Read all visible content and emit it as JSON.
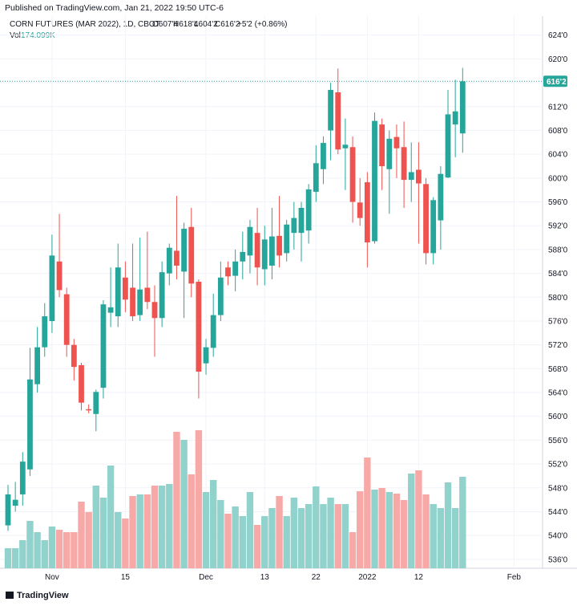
{
  "header": {
    "published": "Published on TradingView.com, Jan 21, 2022 19:50 UTC-6",
    "footer": "TradingView"
  },
  "chart_data": {
    "type": "candlestick",
    "title": "CORN FUTURES (MAR 2022), 1D, CBOT",
    "ohlc_labels": [
      "O607'4",
      "H618'4",
      "L604'2",
      "C616'2"
    ],
    "change_label": "+5'2 (+0.86%)",
    "volume_label": "Vol",
    "up_color": "#26a69a",
    "down_color": "#ef5350",
    "volume_up_color": "#92d2cc",
    "volume_down_color": "#f7a9a7",
    "grid": true,
    "ylim": [
      534.5,
      627.2
    ],
    "yticks": [
      {
        "value": 536,
        "label": "536'0"
      },
      {
        "value": 540,
        "label": "540'0"
      },
      {
        "value": 544,
        "label": "544'0"
      },
      {
        "value": 548,
        "label": "548'0"
      },
      {
        "value": 552,
        "label": "552'0"
      },
      {
        "value": 556,
        "label": "556'0"
      },
      {
        "value": 560,
        "label": "560'0"
      },
      {
        "value": 564,
        "label": "564'0"
      },
      {
        "value": 568,
        "label": "568'0"
      },
      {
        "value": 572,
        "label": "572'0"
      },
      {
        "value": 576,
        "label": "576'0"
      },
      {
        "value": 580,
        "label": "580'0"
      },
      {
        "value": 584,
        "label": "584'0"
      },
      {
        "value": 588,
        "label": "588'0"
      },
      {
        "value": 592,
        "label": "592'0"
      },
      {
        "value": 596,
        "label": "596'0"
      },
      {
        "value": 600,
        "label": "600'0"
      },
      {
        "value": 604,
        "label": "604'0"
      },
      {
        "value": 608,
        "label": "608'0"
      },
      {
        "value": 612,
        "label": "612'0"
      },
      {
        "value": 616,
        "label": "616'0"
      },
      {
        "value": 620,
        "label": "620'0"
      },
      {
        "value": 624,
        "label": "624'0"
      }
    ],
    "xticks": [
      {
        "index": 6,
        "label": "Nov"
      },
      {
        "index": 16,
        "label": "15"
      },
      {
        "index": 27,
        "label": "Dec"
      },
      {
        "index": 35,
        "label": "13"
      },
      {
        "index": 42,
        "label": "22"
      },
      {
        "index": 49,
        "label": "2022"
      },
      {
        "index": 56,
        "label": "12"
      },
      {
        "index": 69,
        "label": "Feb"
      }
    ],
    "candles": [
      {
        "open": 541.7,
        "high": 548.5,
        "low": 540.8,
        "close": 546.9
      },
      {
        "open": 545,
        "high": 549,
        "low": 544,
        "close": 546
      },
      {
        "open": 546.9,
        "high": 554,
        "low": 545,
        "close": 552.4
      },
      {
        "open": 551.1,
        "high": 571.5,
        "low": 550,
        "close": 566.2
      },
      {
        "open": 565.4,
        "high": 575,
        "low": 564,
        "close": 571.6
      },
      {
        "open": 571.6,
        "high": 579,
        "low": 570,
        "close": 576.8
      },
      {
        "open": 576,
        "high": 590.5,
        "low": 574,
        "close": 587
      },
      {
        "open": 586,
        "high": 594,
        "low": 580,
        "close": 581.2
      },
      {
        "open": 580.5,
        "high": 581.6,
        "low": 570,
        "close": 572
      },
      {
        "open": 572,
        "high": 573,
        "low": 566,
        "close": 568.3
      },
      {
        "open": 568.6,
        "high": 569,
        "low": 561,
        "close": 562.3
      },
      {
        "open": 561.2,
        "high": 562,
        "low": 560.5,
        "close": 561
      },
      {
        "open": 560.4,
        "high": 564.5,
        "low": 557.5,
        "close": 564.1
      },
      {
        "open": 564.8,
        "high": 579.5,
        "low": 563,
        "close": 578.8
      },
      {
        "open": 577.4,
        "high": 585,
        "low": 575,
        "close": 578.3
      },
      {
        "open": 576.8,
        "high": 589,
        "low": 575,
        "close": 585
      },
      {
        "open": 583.3,
        "high": 586,
        "low": 577.5,
        "close": 579.6
      },
      {
        "open": 581.6,
        "high": 589,
        "low": 576,
        "close": 576.8
      },
      {
        "open": 577,
        "high": 590,
        "low": 576,
        "close": 581.3
      },
      {
        "open": 581.6,
        "high": 591,
        "low": 578,
        "close": 579.2
      },
      {
        "open": 579.2,
        "high": 582,
        "low": 570,
        "close": 576.5
      },
      {
        "open": 576.5,
        "high": 586,
        "low": 575,
        "close": 584.2
      },
      {
        "open": 584,
        "high": 589,
        "low": 582,
        "close": 588.3
      },
      {
        "open": 587.8,
        "high": 597,
        "low": 583,
        "close": 585.3
      },
      {
        "open": 584.3,
        "high": 592.5,
        "low": 576.5,
        "close": 591.5
      },
      {
        "open": 591.8,
        "high": 595,
        "low": 580,
        "close": 582.3
      },
      {
        "open": 582.6,
        "high": 583,
        "low": 563,
        "close": 567.5
      },
      {
        "open": 568.9,
        "high": 573,
        "low": 567,
        "close": 571.6
      },
      {
        "open": 571.5,
        "high": 580.6,
        "low": 570,
        "close": 577
      },
      {
        "open": 577,
        "high": 586,
        "low": 576,
        "close": 583.3
      },
      {
        "open": 585,
        "high": 586,
        "low": 582,
        "close": 583.5
      },
      {
        "open": 583.6,
        "high": 588,
        "low": 581,
        "close": 586
      },
      {
        "open": 586,
        "high": 591,
        "low": 583,
        "close": 587.6
      },
      {
        "open": 587,
        "high": 593,
        "low": 584,
        "close": 591.8
      },
      {
        "open": 590.8,
        "high": 595,
        "low": 582,
        "close": 585
      },
      {
        "open": 584.7,
        "high": 592,
        "low": 582,
        "close": 589.7
      },
      {
        "open": 585.3,
        "high": 595,
        "low": 583,
        "close": 590.2
      },
      {
        "open": 590.3,
        "high": 597,
        "low": 585,
        "close": 587
      },
      {
        "open": 587.4,
        "high": 593,
        "low": 586,
        "close": 592.2
      },
      {
        "open": 590.8,
        "high": 596,
        "low": 588,
        "close": 593.3
      },
      {
        "open": 590.8,
        "high": 596,
        "low": 586,
        "close": 595
      },
      {
        "open": 591.2,
        "high": 599,
        "low": 589,
        "close": 598.1
      },
      {
        "open": 597.7,
        "high": 605.5,
        "low": 596,
        "close": 602.5
      },
      {
        "open": 601.5,
        "high": 607,
        "low": 599,
        "close": 605.9
      },
      {
        "open": 608,
        "high": 616,
        "low": 603,
        "close": 614.8
      },
      {
        "open": 614.4,
        "high": 618.4,
        "low": 604,
        "close": 604.8
      },
      {
        "open": 605,
        "high": 610,
        "low": 598,
        "close": 605.6
      },
      {
        "open": 605.2,
        "high": 607,
        "low": 592.5,
        "close": 596
      },
      {
        "open": 595.9,
        "high": 600,
        "low": 592,
        "close": 593.3
      },
      {
        "open": 599.3,
        "high": 601,
        "low": 585,
        "close": 589.2
      },
      {
        "open": 589.4,
        "high": 611,
        "low": 589,
        "close": 609.6
      },
      {
        "open": 609,
        "high": 610,
        "low": 598,
        "close": 602
      },
      {
        "open": 601.5,
        "high": 608,
        "low": 594,
        "close": 606.6
      },
      {
        "open": 606.9,
        "high": 609,
        "low": 600,
        "close": 605
      },
      {
        "open": 605.2,
        "high": 609.5,
        "low": 595,
        "close": 599.7
      },
      {
        "open": 599.7,
        "high": 606,
        "low": 596,
        "close": 601
      },
      {
        "open": 601.4,
        "high": 606,
        "low": 589,
        "close": 599.1
      },
      {
        "open": 599,
        "high": 600,
        "low": 585.5,
        "close": 587.4
      },
      {
        "open": 587.4,
        "high": 596.8,
        "low": 585.5,
        "close": 596.3
      },
      {
        "open": 592.9,
        "high": 602,
        "low": 588,
        "close": 600.7
      },
      {
        "open": 600.1,
        "high": 614.8,
        "low": 600,
        "close": 610.7
      },
      {
        "open": 609,
        "high": 616.5,
        "low": 603.5,
        "close": 611.2
      },
      {
        "open": 607.5,
        "high": 618.5,
        "low": 604.25,
        "close": 616.25
      }
    ],
    "last_price_label": "616'2",
    "volumes": [
      38175,
      38175,
      53445,
      90093,
      68715,
      53445,
      79404,
      73296,
      68715,
      68715,
      126741,
      106890,
      157281,
      134376,
      195456,
      106890,
      94674,
      137430,
      140484,
      140484,
      157281,
      157281,
      160335,
      259590,
      244320,
      178659,
      262644,
      145065,
      167970,
      129795,
      103836,
      117579,
      99255,
      145065,
      82458,
      99255,
      114525,
      137430,
      99255,
      134376,
      114525,
      122160,
      155754,
      122160,
      134376,
      122160,
      122160,
      68715,
      146592,
      210726,
      149646,
      152700,
      145065,
      142011,
      129795,
      180186,
      186294,
      140484,
      122160,
      114525,
      163389,
      114525,
      174099
    ],
    "volume_value_labels": {
      "62": "174.099K"
    }
  }
}
